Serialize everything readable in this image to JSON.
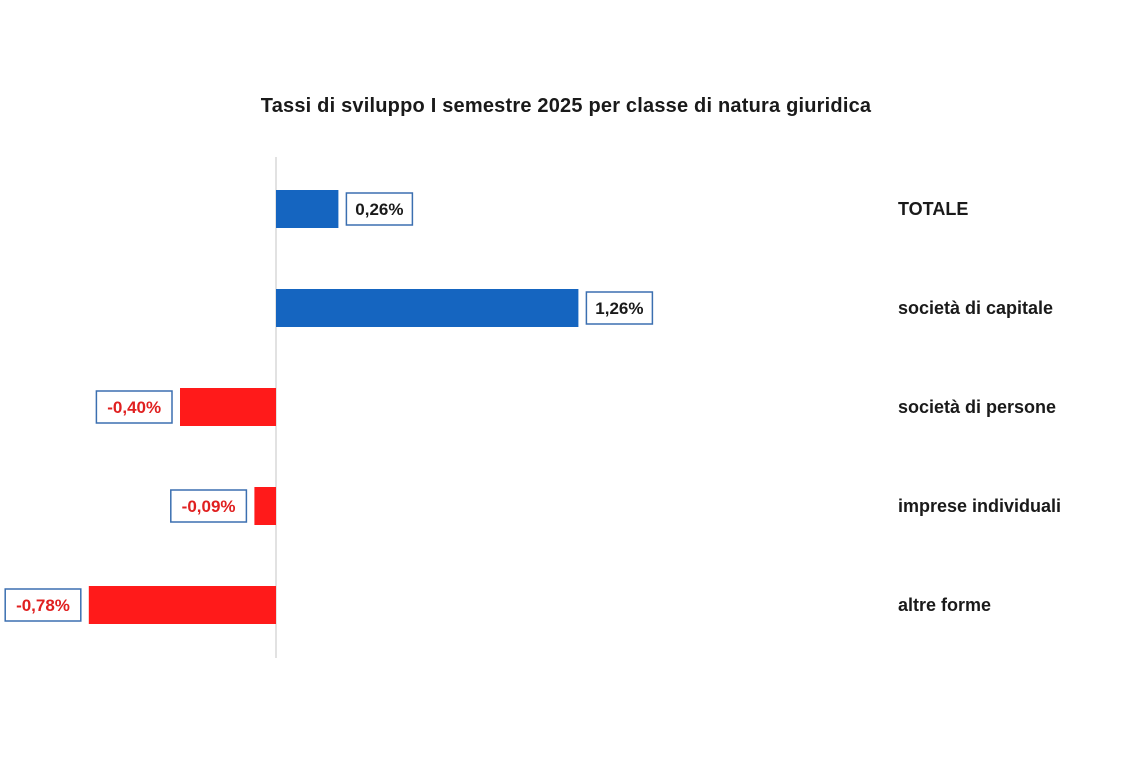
{
  "chart_data": {
    "type": "bar",
    "orientation": "horizontal",
    "title": "Tassi di sviluppo  I semestre 2025 per classe di natura giuridica",
    "categories": [
      "TOTALE",
      "società di capitale",
      "società di persone",
      "imprese individuali",
      "altre forme"
    ],
    "values": [
      0.26,
      1.26,
      -0.4,
      -0.09,
      -0.78
    ],
    "value_labels": [
      "0,26%",
      "1,26%",
      "-0,40%",
      "-0,09%",
      "-0,78%"
    ],
    "unit": "%",
    "xlabel": "",
    "ylabel": "",
    "grid": false,
    "legend": "none",
    "colors": {
      "positive": "#1565c0",
      "negative": "#ff1a1a",
      "positive_label_text": "#1a1a1a",
      "negative_label_text": "#e02020",
      "label_border": "#3b6fb0"
    }
  }
}
